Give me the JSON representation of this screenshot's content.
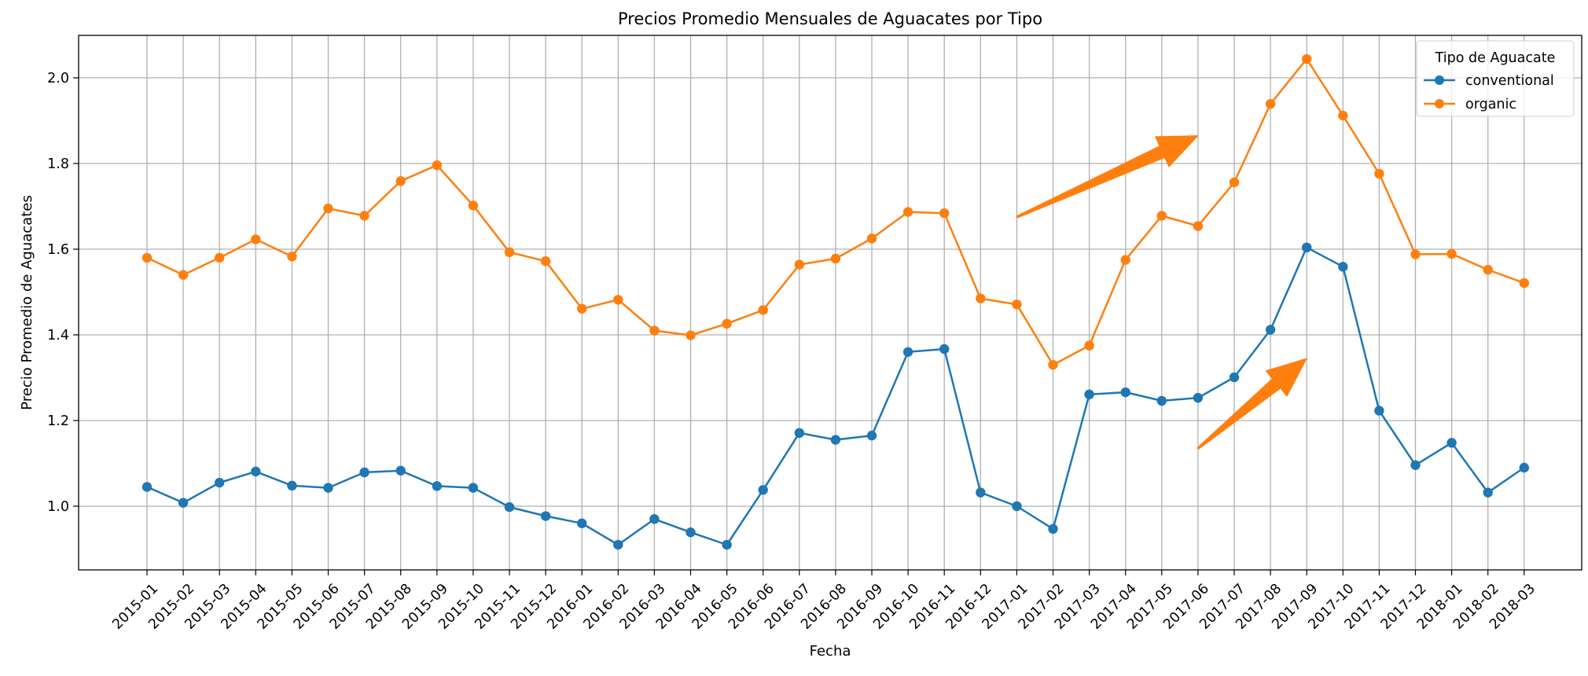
{
  "chart_data": {
    "type": "line",
    "title": "Precios Promedio Mensuales de Aguacates por Tipo",
    "xlabel": "Fecha",
    "ylabel": "Precio Promedio de Aguacates",
    "ylim": [
      0.87,
      2.11
    ],
    "yticks": [
      1.0,
      1.2,
      1.4,
      1.6,
      1.8,
      2.0
    ],
    "ytick_labels": [
      "1.0",
      "1.2",
      "1.4",
      "1.6",
      "1.8",
      "2.0"
    ],
    "grid": true,
    "legend": {
      "title": "Tipo de Aguacate",
      "position": "top-right"
    },
    "categories": [
      "2015-01",
      "2015-02",
      "2015-03",
      "2015-04",
      "2015-05",
      "2015-06",
      "2015-07",
      "2015-08",
      "2015-09",
      "2015-10",
      "2015-11",
      "2015-12",
      "2016-01",
      "2016-02",
      "2016-03",
      "2016-04",
      "2016-05",
      "2016-06",
      "2016-07",
      "2016-08",
      "2016-09",
      "2016-10",
      "2016-11",
      "2016-12",
      "2017-01",
      "2017-02",
      "2017-03",
      "2017-04",
      "2017-05",
      "2017-06",
      "2017-07",
      "2017-08",
      "2017-09",
      "2017-10",
      "2017-11",
      "2017-12",
      "2018-01",
      "2018-02",
      "2018-03"
    ],
    "series": [
      {
        "name": "conventional",
        "color": "#1f77b4",
        "values": [
          1.045,
          1.008,
          1.055,
          1.081,
          1.048,
          1.043,
          1.079,
          1.083,
          1.047,
          1.043,
          0.998,
          0.977,
          0.96,
          0.91,
          0.97,
          0.939,
          0.91,
          1.038,
          1.171,
          1.155,
          1.165,
          1.36,
          1.367,
          1.032,
          1.0,
          0.947,
          1.261,
          1.266,
          1.246,
          1.253,
          1.301,
          1.412,
          1.604,
          1.559,
          1.223,
          1.096,
          1.148,
          1.032,
          1.09
        ]
      },
      {
        "name": "organic",
        "color": "#ff7f0e",
        "values": [
          1.58,
          1.54,
          1.58,
          1.623,
          1.583,
          1.695,
          1.678,
          1.759,
          1.796,
          1.702,
          1.593,
          1.572,
          1.461,
          1.482,
          1.41,
          1.399,
          1.426,
          1.458,
          1.564,
          1.578,
          1.625,
          1.687,
          1.684,
          1.485,
          1.471,
          1.33,
          1.375,
          1.575,
          1.678,
          1.654,
          1.756,
          1.939,
          2.044,
          1.912,
          1.776,
          1.588,
          1.589,
          1.552,
          1.521
        ]
      }
    ],
    "annotations": [
      {
        "type": "arrow",
        "color": "#ff7f0e",
        "from": [
          "2017-01",
          1.675
        ],
        "to": [
          "2017-06",
          1.865
        ]
      },
      {
        "type": "arrow",
        "color": "#ff7f0e",
        "from": [
          "2017-06",
          1.135
        ],
        "to": [
          "2017-09",
          1.345
        ]
      }
    ]
  }
}
